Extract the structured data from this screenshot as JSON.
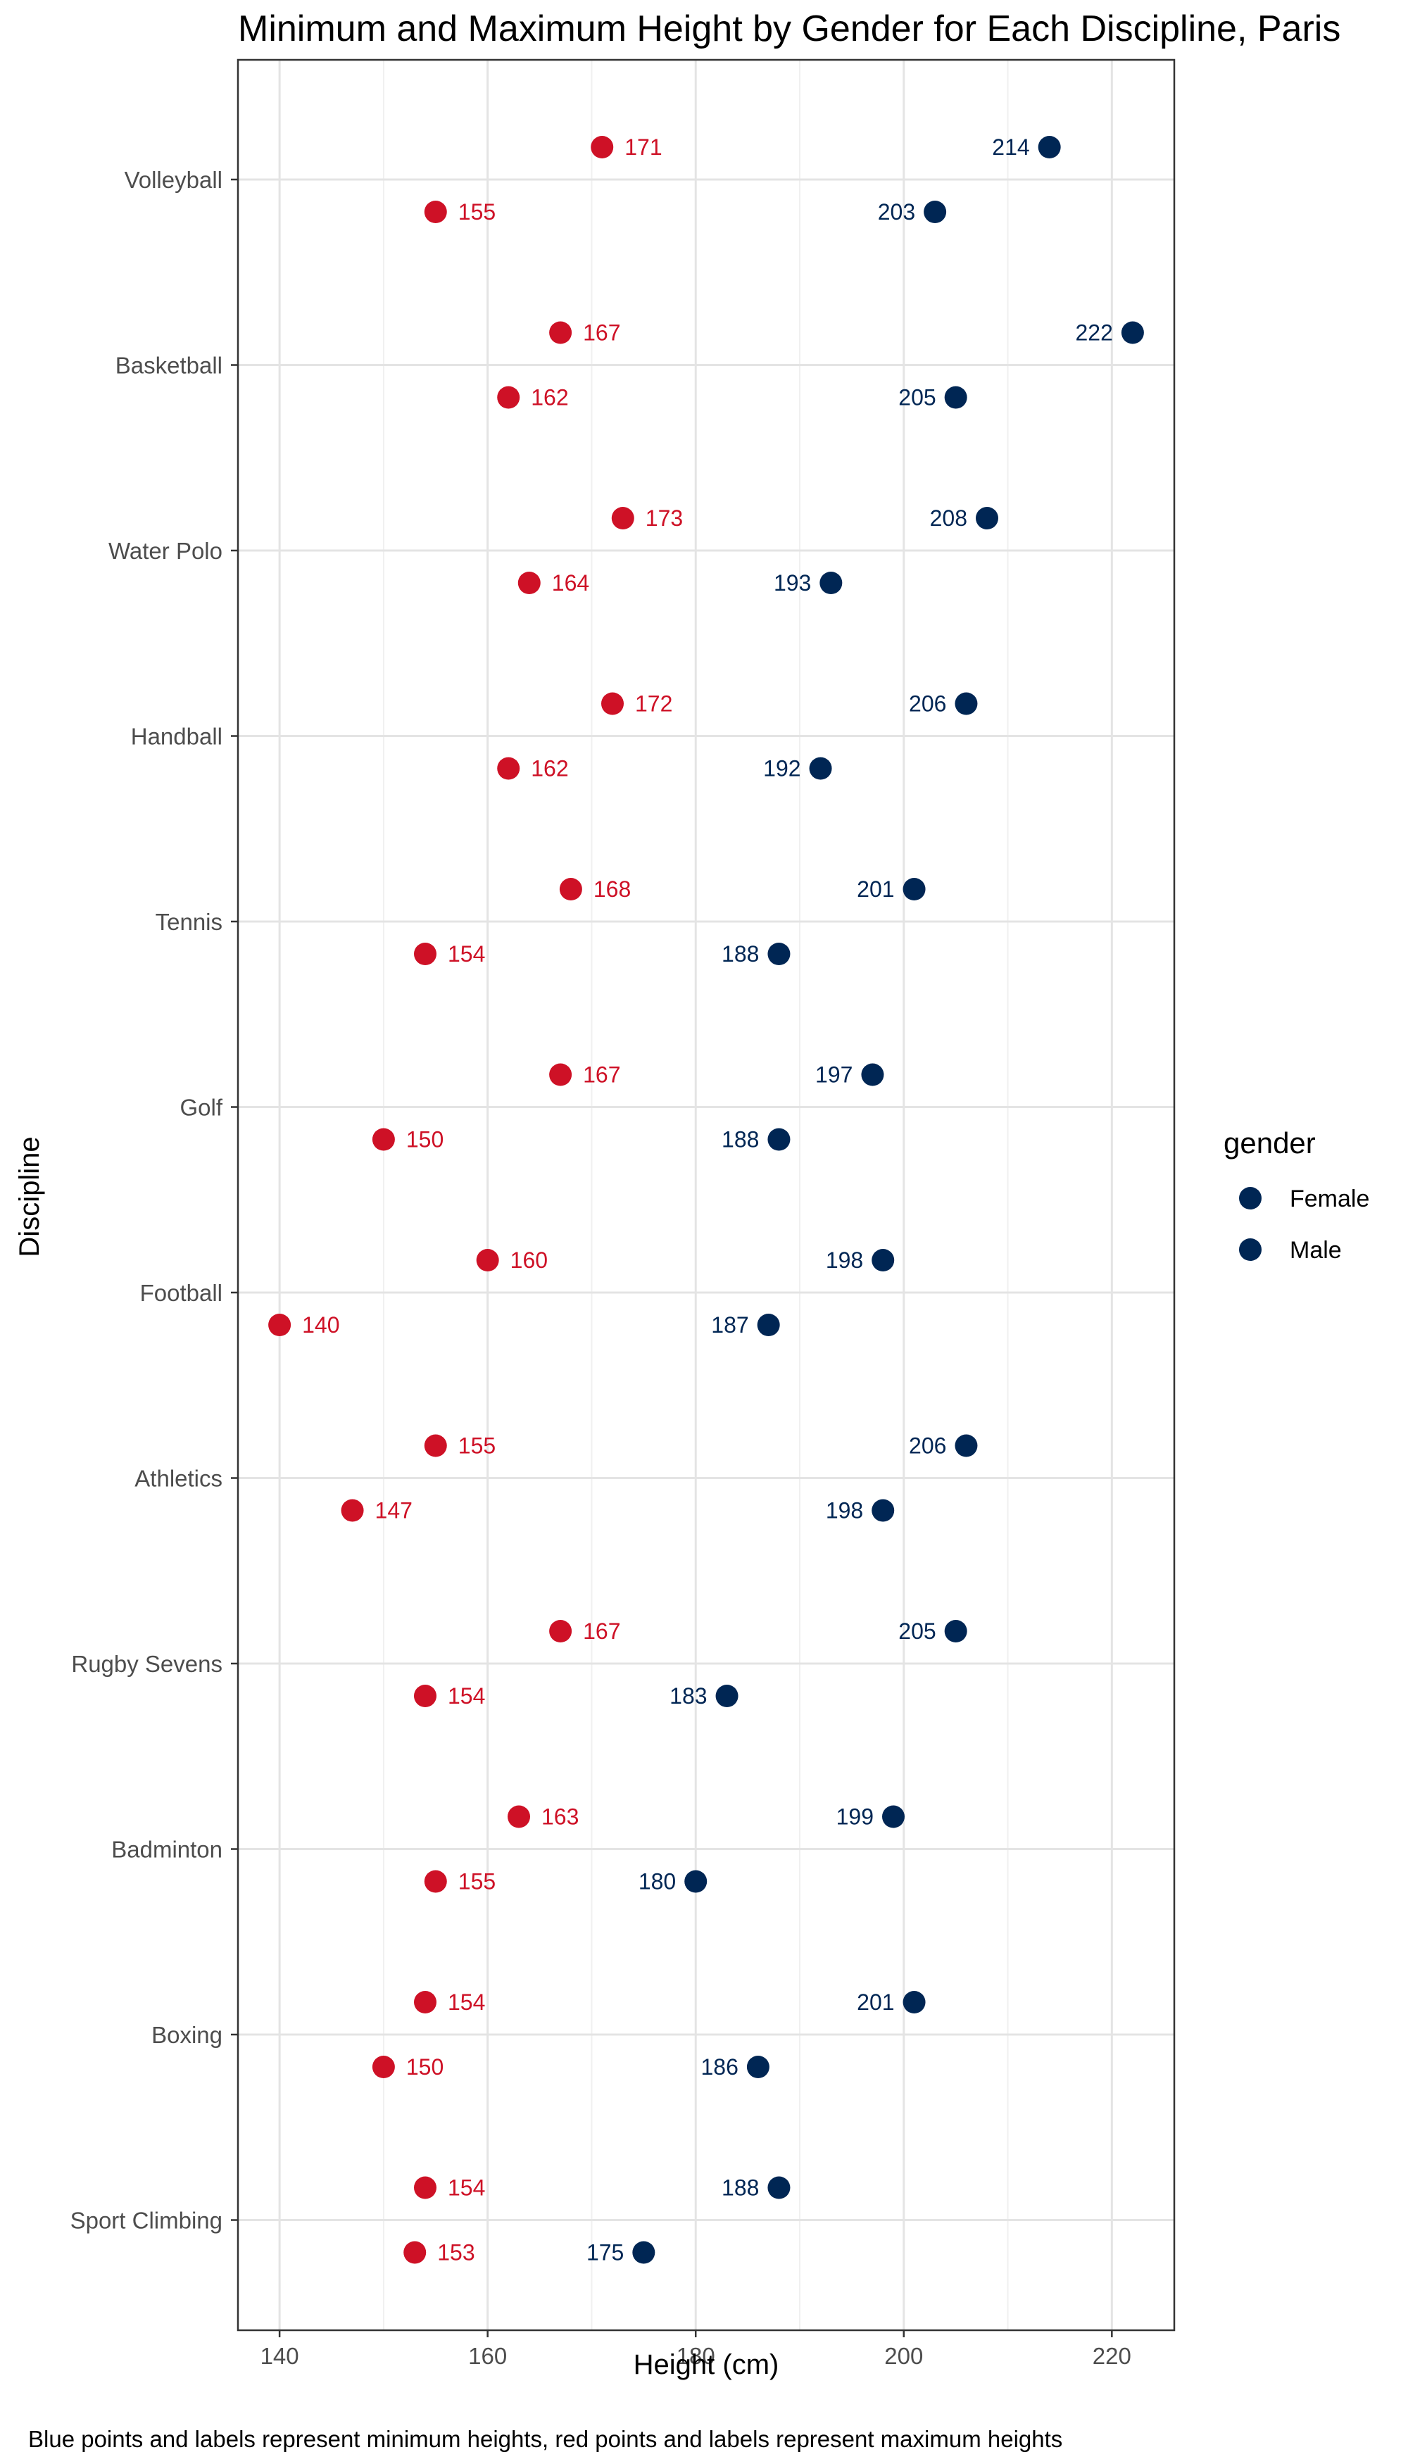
{
  "chart_data": {
    "type": "scatter",
    "title": "Minimum and Maximum Height by Gender for Each Discipline, Paris",
    "xlabel": "Height (cm)",
    "ylabel": "Discipline",
    "caption": "Blue points and labels represent minimum heights, red points and labels represent maximum heights",
    "xlim": [
      136,
      226
    ],
    "x_ticks": [
      "140",
      "160",
      "180",
      "200",
      "220"
    ],
    "grid": true,
    "legend": {
      "title": "gender",
      "placement": "right",
      "entries": [
        {
          "label": "Female",
          "color": "#002654"
        },
        {
          "label": "Male",
          "color": "#002654"
        }
      ]
    },
    "colors": {
      "min": "#002654",
      "max": "#CE1126"
    },
    "categories": [
      "Volleyball",
      "Basketball",
      "Water Polo",
      "Handball",
      "Tennis",
      "Golf",
      "Football",
      "Athletics",
      "Rugby Sevens",
      "Badminton",
      "Boxing",
      "Sport Climbing"
    ],
    "series": [
      {
        "gender": "Male",
        "stat": "max",
        "values": [
          214,
          222,
          208,
          206,
          201,
          197,
          198,
          206,
          205,
          199,
          201,
          188
        ]
      },
      {
        "gender": "Male",
        "stat": "min",
        "values": [
          171,
          167,
          173,
          172,
          168,
          167,
          160,
          155,
          167,
          163,
          154,
          154
        ]
      },
      {
        "gender": "Female",
        "stat": "max",
        "values": [
          203,
          205,
          193,
          192,
          188,
          188,
          187,
          198,
          183,
          180,
          186,
          175
        ]
      },
      {
        "gender": "Female",
        "stat": "min",
        "values": [
          155,
          162,
          164,
          162,
          154,
          150,
          140,
          147,
          154,
          155,
          150,
          153
        ]
      }
    ]
  }
}
